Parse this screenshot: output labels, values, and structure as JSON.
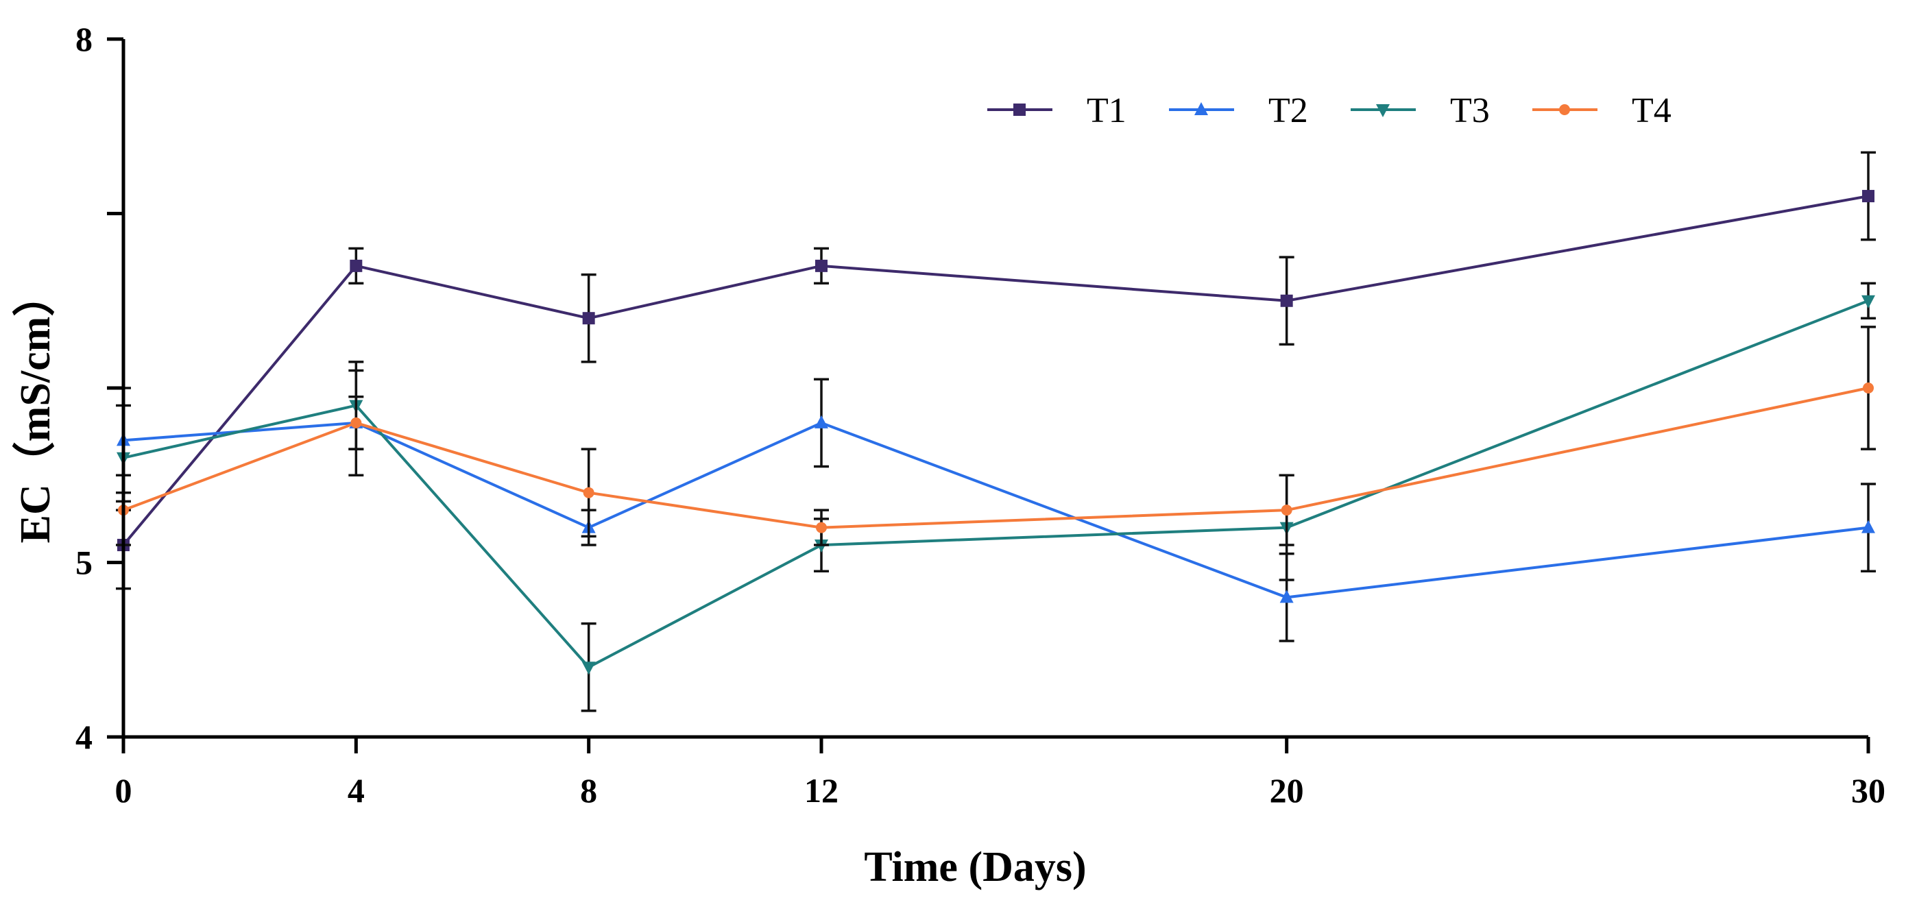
{
  "chart_data": {
    "type": "line",
    "title": "",
    "xlabel": "Time (Days)",
    "ylabel": "EC（mS/cm）",
    "x": [
      0,
      4,
      8,
      12,
      20,
      30
    ],
    "x_tick_labels": [
      "0",
      "4",
      "8",
      "12",
      "20",
      "30"
    ],
    "xlim": [
      0,
      30
    ],
    "ylim": [
      4,
      8
    ],
    "y_major_ticks": [
      4,
      5,
      8
    ],
    "y_tick_labels": [
      "4",
      "5",
      "8"
    ],
    "y_minor_ticks": [
      6,
      7
    ],
    "grid": false,
    "legend_position": "top-right",
    "series": [
      {
        "name": "T1",
        "color": "#3d2a6b",
        "marker": "square",
        "values": [
          5.1,
          6.7,
          6.4,
          6.7,
          6.5,
          7.1
        ],
        "errors": [
          0.25,
          0.1,
          0.25,
          0.1,
          0.25,
          0.25
        ]
      },
      {
        "name": "T2",
        "color": "#2a6fe8",
        "marker": "triangle-up",
        "values": [
          5.7,
          5.8,
          5.2,
          5.8,
          4.8,
          5.2
        ],
        "errors": [
          0.3,
          0.3,
          0.1,
          0.25,
          0.25,
          0.25
        ]
      },
      {
        "name": "T3",
        "color": "#1f7f7f",
        "marker": "triangle-down",
        "values": [
          5.6,
          5.9,
          4.4,
          5.1,
          5.2,
          6.5
        ],
        "errors": [
          0.3,
          0.25,
          0.25,
          0.15,
          0.3,
          0.1
        ]
      },
      {
        "name": "T4",
        "color": "#f57a3a",
        "marker": "circle",
        "values": [
          5.3,
          5.8,
          5.4,
          5.2,
          5.3,
          6.0
        ],
        "errors": [
          0.2,
          0.15,
          0.25,
          0.1,
          0.2,
          0.35
        ]
      }
    ]
  }
}
